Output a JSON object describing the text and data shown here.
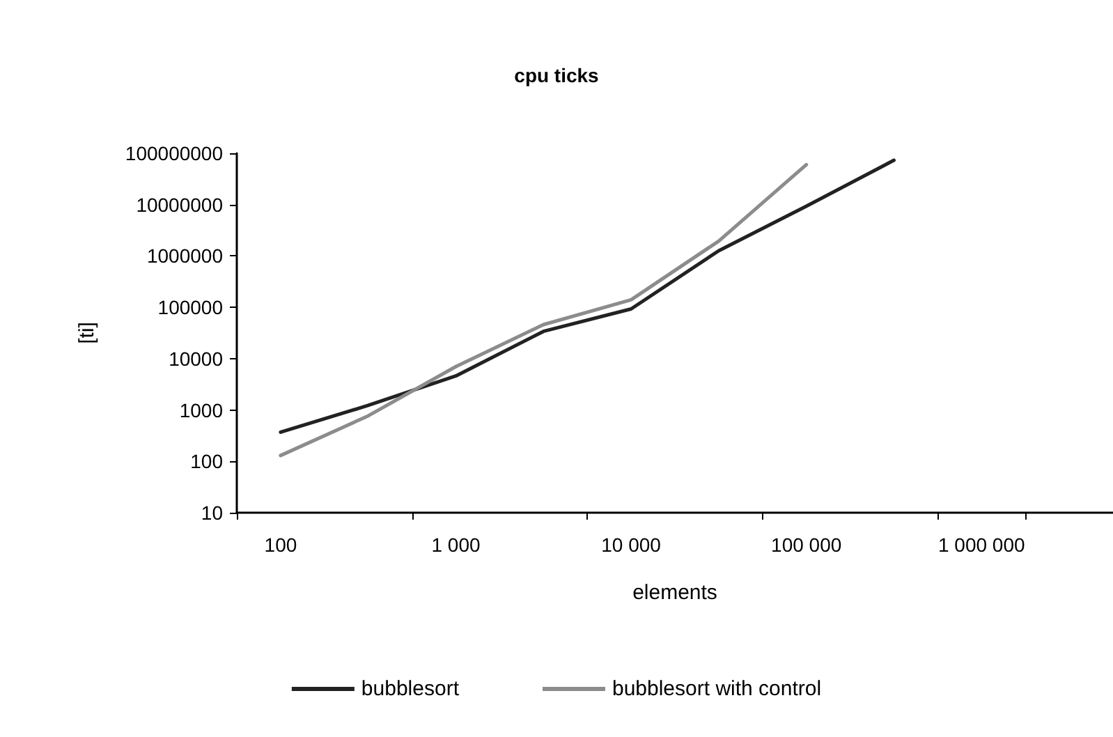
{
  "chart_data": {
    "type": "line",
    "title": "cpu ticks",
    "xlabel": "elements",
    "ylabel": "[ti]",
    "categories": [
      "100",
      null,
      "1 000",
      null,
      "10 000",
      null,
      "100 000",
      null,
      "1 000 000",
      null
    ],
    "series": [
      {
        "name": "bubblesort",
        "color": "#222222",
        "values": [
          370,
          1230,
          4600,
          34000,
          93000,
          1260000,
          9300000,
          73000000,
          null,
          null
        ]
      },
      {
        "name": "bubblesort with control",
        "color": "#8c8c8c",
        "values": [
          130,
          770,
          7000,
          46000,
          140000,
          1950000,
          60000000,
          null,
          null,
          null
        ]
      }
    ],
    "log": "y",
    "ylim": [
      10,
      100000000
    ],
    "yticks": [
      10,
      100,
      1000,
      10000,
      100000,
      1000000,
      10000000,
      100000000
    ],
    "grid": false,
    "legend": "bottom",
    "marker": "none",
    "line_style": "solid"
  }
}
